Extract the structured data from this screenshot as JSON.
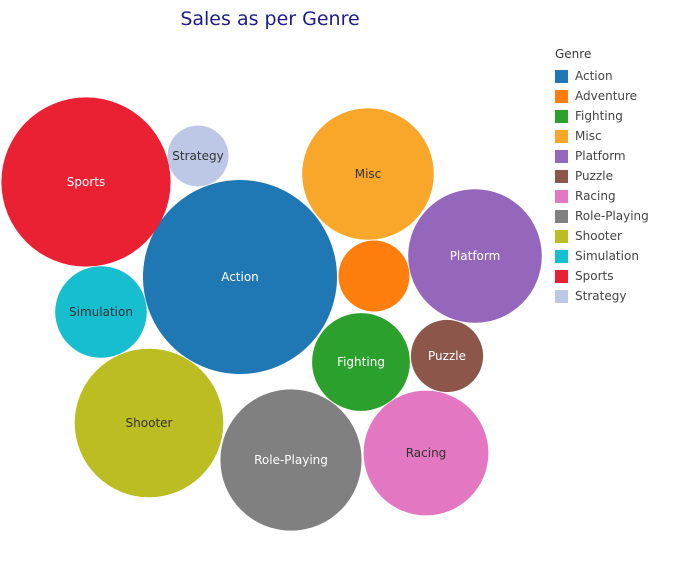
{
  "chart_data": {
    "type": "bubble",
    "title": "Sales as per Genre",
    "legend_title": "Genre",
    "legend_position": "right",
    "series": [
      {
        "name": "Action",
        "value": 1750,
        "color": "#1f77b4",
        "label": "Action",
        "label_color": "#ffffff"
      },
      {
        "name": "Adventure",
        "value": 234,
        "color": "#ff7f0e",
        "label": "",
        "label_color": "#ffffff"
      },
      {
        "name": "Fighting",
        "value": 445,
        "color": "#2ca02c",
        "label": "Fighting",
        "label_color": "#ffffff"
      },
      {
        "name": "Misc",
        "value": 805,
        "color": "#f8a72b",
        "label": "Misc",
        "label_color": "#333333"
      },
      {
        "name": "Platform",
        "value": 830,
        "color": "#9467bd",
        "label": "Platform",
        "label_color": "#ffffff"
      },
      {
        "name": "Puzzle",
        "value": 242,
        "color": "#8c564b",
        "label": "Puzzle",
        "label_color": "#ffffff"
      },
      {
        "name": "Racing",
        "value": 725,
        "color": "#e377c2",
        "label": "Racing",
        "label_color": "#333333"
      },
      {
        "name": "Role-Playing",
        "value": 927,
        "color": "#808080",
        "label": "Role-Playing",
        "label_color": "#ffffff"
      },
      {
        "name": "Shooter",
        "value": 1027,
        "color": "#bcbd22",
        "label": "Shooter",
        "label_color": "#333333"
      },
      {
        "name": "Simulation",
        "value": 390,
        "color": "#17becf",
        "label": "Simulation",
        "label_color": "#333333"
      },
      {
        "name": "Sports",
        "value": 1330,
        "color": "#ea2033",
        "label": "Sports",
        "label_color": "#ffffff"
      },
      {
        "name": "Strategy",
        "value": 173,
        "color": "#bdc8e6",
        "label": "Strategy",
        "label_color": "#333333"
      }
    ]
  }
}
